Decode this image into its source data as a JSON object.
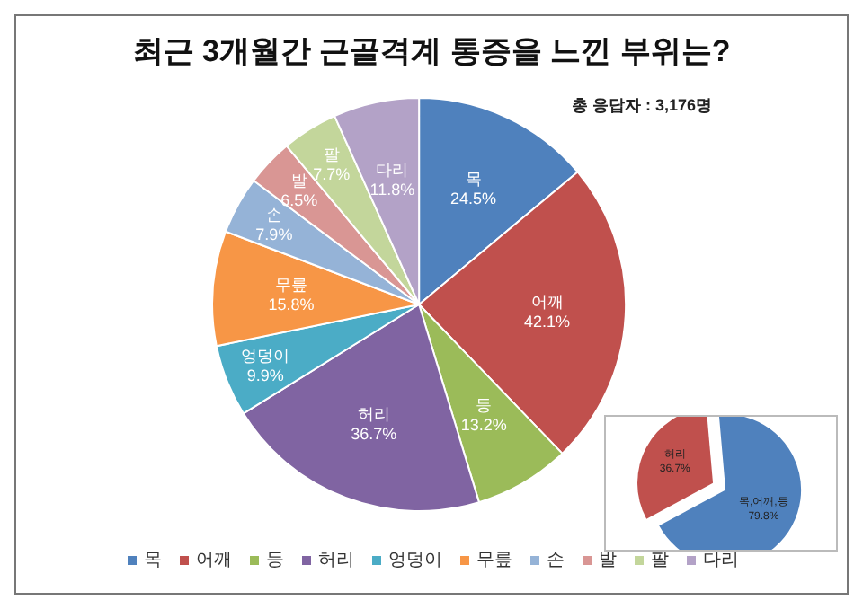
{
  "chart_data": [
    {
      "type": "pie",
      "title": "최근 3개월간 근골격계 통증을 느낀 부위는?",
      "subtitle": "총 응답자 : 3,176명",
      "categories": [
        "목",
        "어깨",
        "등",
        "허리",
        "엉덩이",
        "무릎",
        "손",
        "발",
        "팔",
        "다리"
      ],
      "values": [
        24.5,
        42.1,
        13.2,
        36.7,
        9.9,
        15.8,
        7.9,
        6.5,
        7.7,
        11.8
      ],
      "value_labels": [
        "24.5%",
        "42.1%",
        "13.2%",
        "36.7%",
        "9.9%",
        "15.8%",
        "7.9%",
        "6.5%",
        "7.7%",
        "11.8%"
      ],
      "colors": [
        "#4f81bd",
        "#c0504d",
        "#9bbb59",
        "#8064a2",
        "#4bacc6",
        "#f79646",
        "#95b3d7",
        "#d99694",
        "#c3d69b",
        "#b3a2c7"
      ],
      "legend": "bottom"
    },
    {
      "type": "pie",
      "categories": [
        "목,어깨,등",
        "허리"
      ],
      "values": [
        79.8,
        36.7
      ],
      "value_labels": [
        "79.8%",
        "36.7%"
      ],
      "colors": [
        "#4f81bd",
        "#c0504d"
      ],
      "legend": false
    }
  ]
}
